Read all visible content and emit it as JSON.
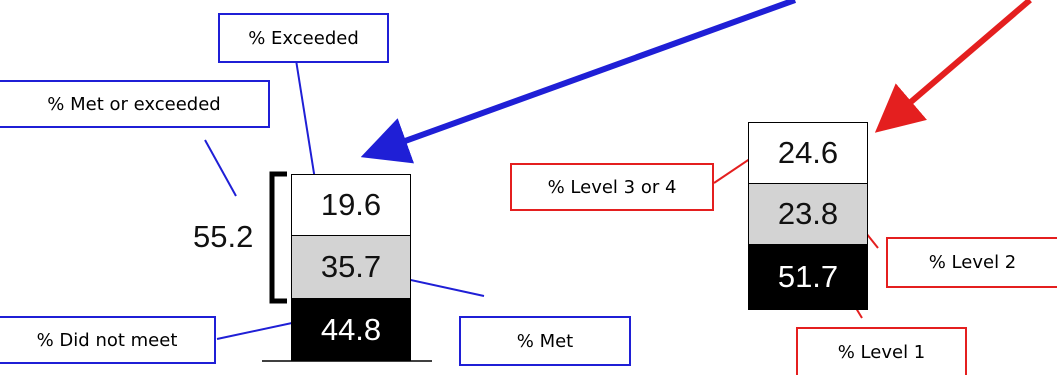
{
  "left_chart": {
    "total_value": "55.2",
    "segments": [
      {
        "key": "exceeded",
        "value": "19.6"
      },
      {
        "key": "met",
        "value": "35.7"
      },
      {
        "key": "did_not_meet",
        "value": "44.8"
      }
    ]
  },
  "right_chart": {
    "segments": [
      {
        "key": "level_3_or_4",
        "value": "24.6"
      },
      {
        "key": "level_2",
        "value": "23.8"
      },
      {
        "key": "level_1",
        "value": "51.7"
      }
    ]
  },
  "labels": {
    "exceeded": "% Exceeded",
    "met_or_exceeded": "% Met or exceeded",
    "did_not_meet": "% Did not meet",
    "met": "% Met",
    "level_3_or_4": "% Level 3 or 4",
    "level_2": "% Level 2",
    "level_1": "% Level 1"
  },
  "colors": {
    "left_accent": "#1f1fd6",
    "right_accent": "#e41f1f",
    "top_segment": "#ffffff",
    "middle_segment": "#d3d3d3",
    "bottom_segment": "#000000"
  }
}
